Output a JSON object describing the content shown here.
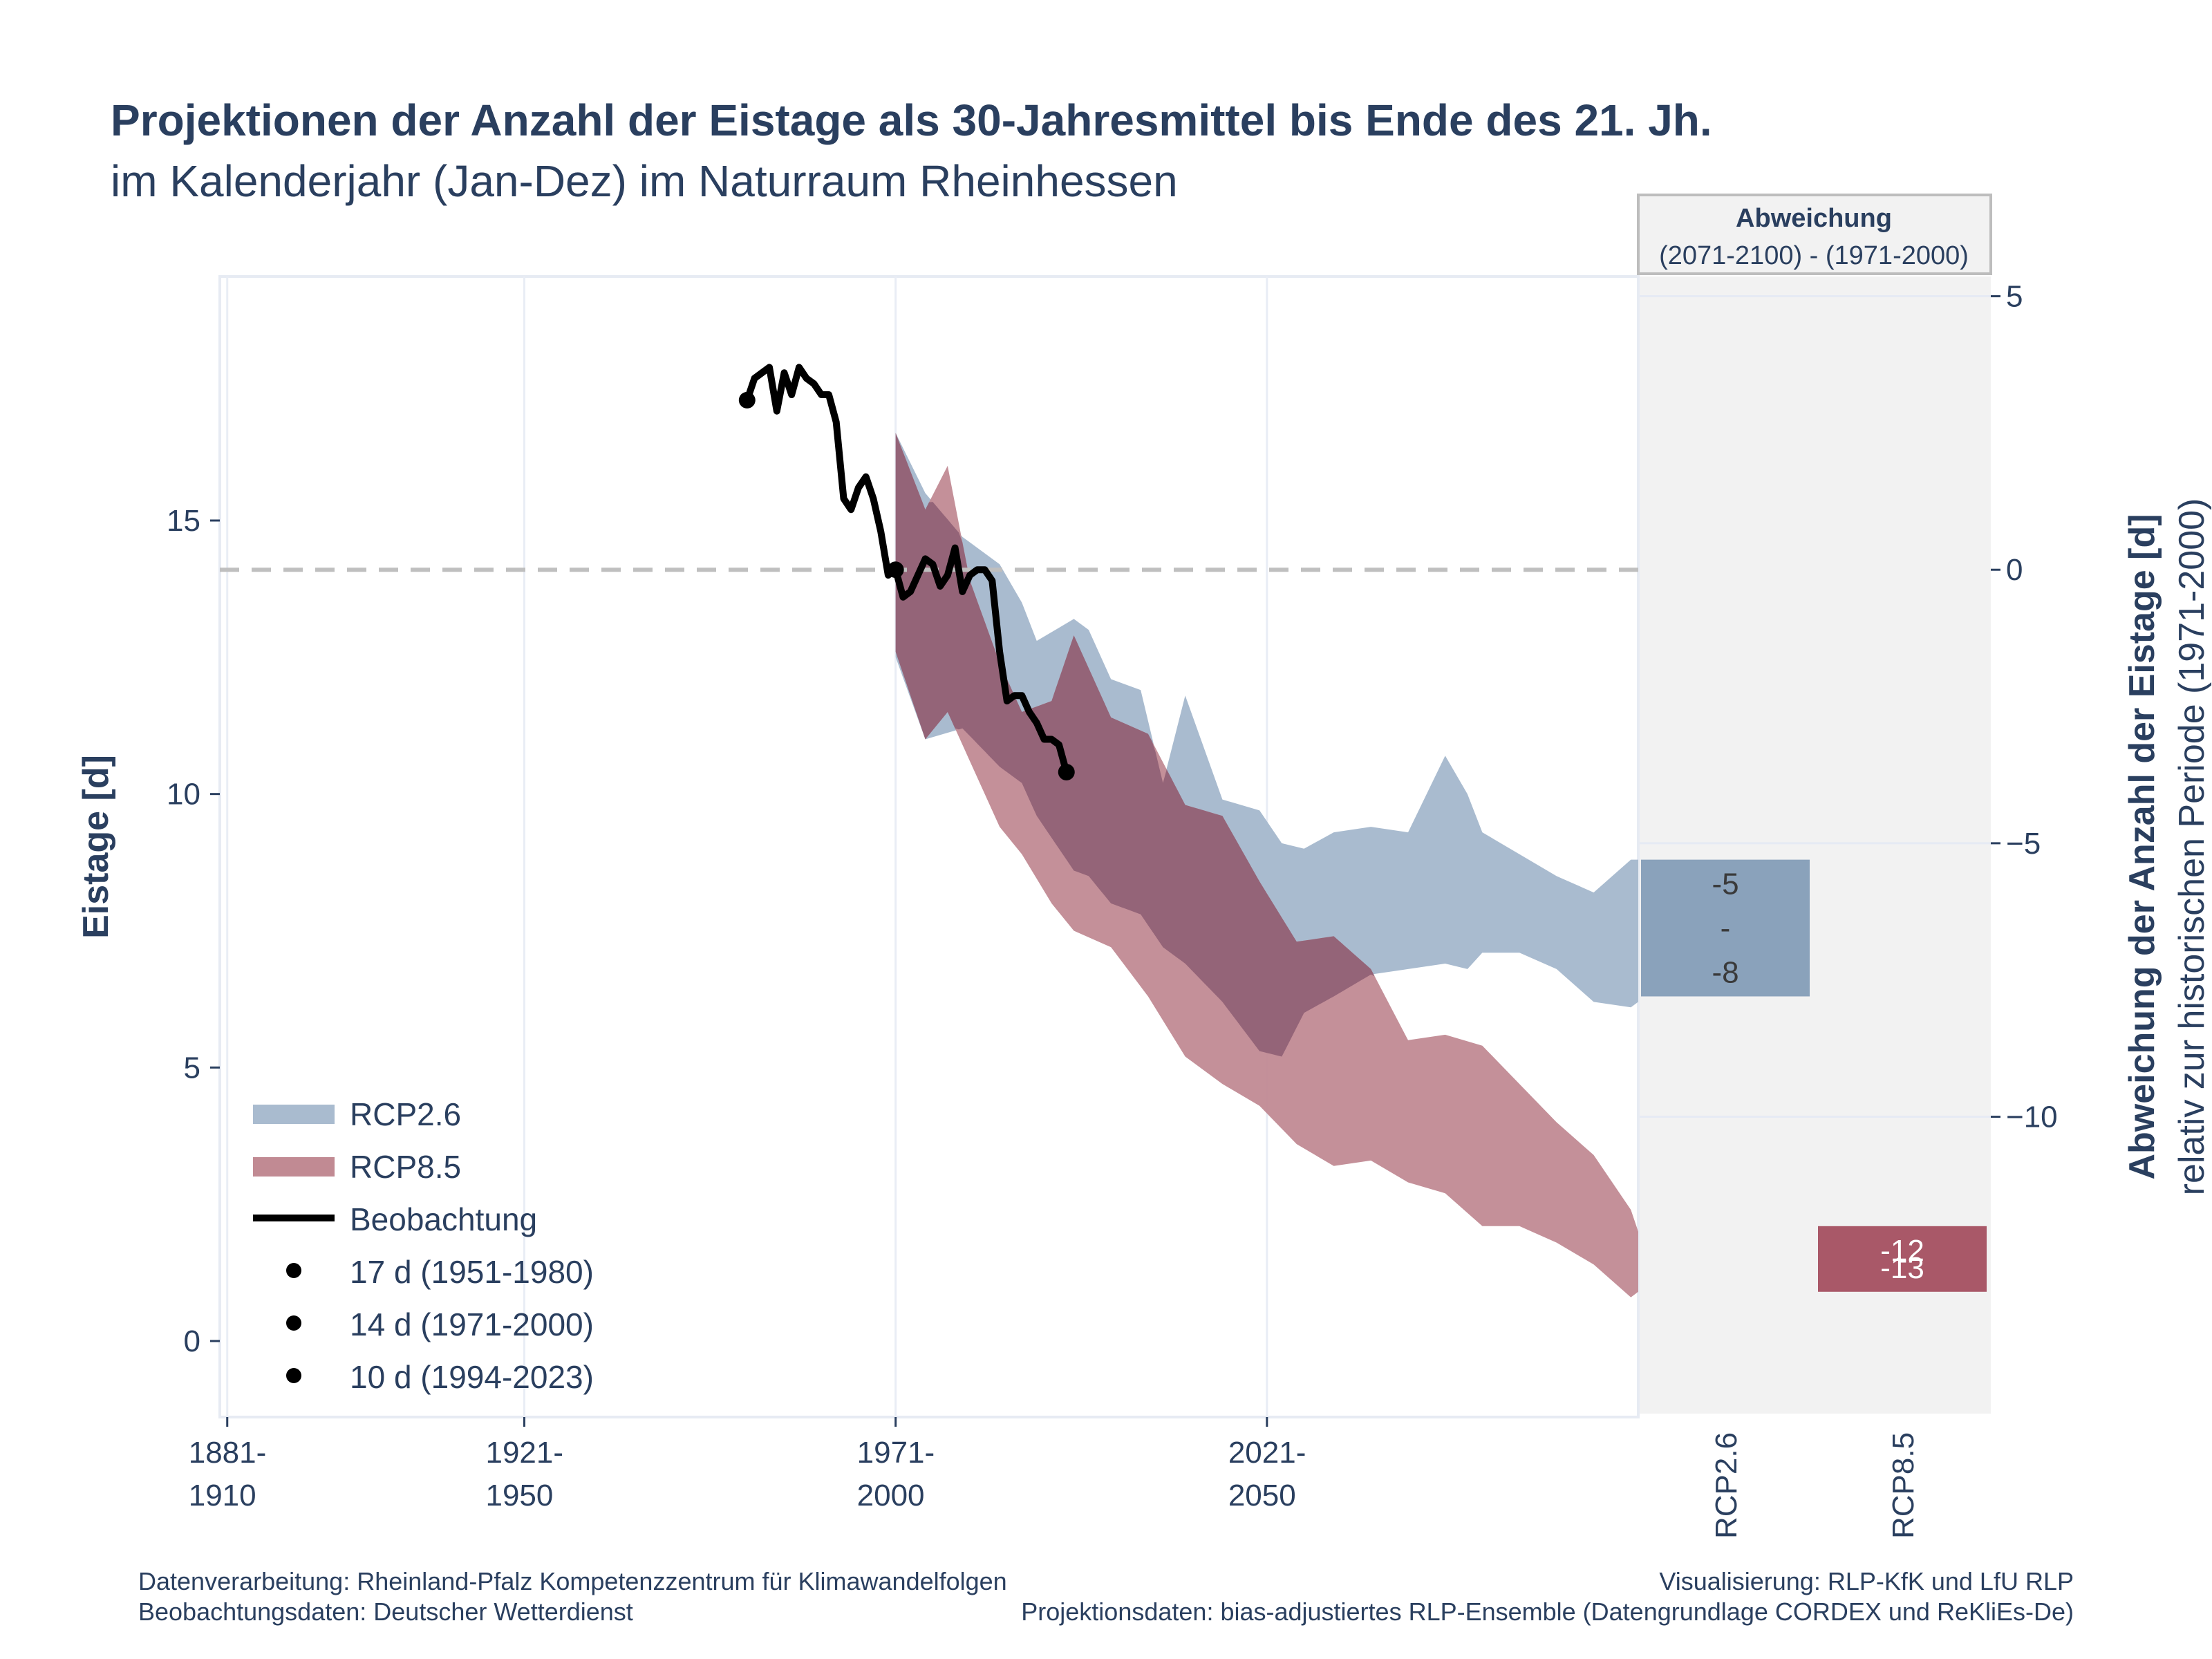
{
  "header": {
    "title": "Projektionen der Anzahl der Eistage als 30-Jahresmittel bis Ende des 21. Jh.",
    "subtitle": "im Kalenderjahr (Jan-Dez) im Naturraum Rheinhessen"
  },
  "panel": {
    "head_line1": "Abweichung",
    "head_line2": "(2071-2100) - (1971-2000)",
    "categories": [
      "RCP2.6",
      "RCP8.5"
    ]
  },
  "footer": {
    "left_line1": "Datenverarbeitung: Rheinland-Pfalz Kompetenzzentrum für Klimawandelfolgen",
    "left_line2": "Beobachtungsdaten:  Deutscher Wetterdienst",
    "right_line1": "Visualisierung: RLP-KfK und LfU RLP",
    "right_line2": "Projektionsdaten: bias-adjustiertes RLP-Ensemble (Datengrundlage CORDEX und ReKliEs-De)"
  },
  "legend": {
    "items": [
      "RCP2.6",
      "RCP8.5",
      "Beobachtung",
      "17 d (1951-1980)",
      "14 d (1971-2000)",
      "10 d (1994-2023)"
    ]
  },
  "colors": {
    "rcp26": "#a9bbcf",
    "rcp85": "#c18a93",
    "overlap": "#8c5d72",
    "obs": "#000000",
    "bar_rcp26": "#8aa2bb",
    "bar_rcp85": "#a95868",
    "reference_line": "#bfbfbf",
    "panel_bg": "#f2f2f2"
  },
  "chart_data": {
    "type": "area",
    "title": "Projektionen der Anzahl der Eistage als 30-Jahresmittel bis Ende des 21. Jh.",
    "subtitle": "im Kalenderjahr (Jan-Dez) im Naturraum Rheinhessen",
    "ylabel": "Eistage [d]",
    "y2label": "Abweichung der Anzahl der Eistage [d]",
    "y2label_sub": "relativ zur historischen Periode (1971-2000)",
    "x_unit": "start year of 30-year period",
    "x_ticks": [
      {
        "x": 1881,
        "label1": "1881-",
        "label2": "1910"
      },
      {
        "x": 1921,
        "label1": "1921-",
        "label2": "1950"
      },
      {
        "x": 1971,
        "label1": "1971-",
        "label2": "2000"
      },
      {
        "x": 2021,
        "label1": "2021-",
        "label2": "2050"
      }
    ],
    "y_ticks": [
      0,
      5,
      10,
      15
    ],
    "y2_ticks": [
      5,
      0,
      -5,
      -10
    ],
    "xlim": [
      1880,
      2071
    ],
    "ylim": [
      -0.8,
      19.5
    ],
    "reference_value": 14.1,
    "series": [
      {
        "name": "RCP2.6",
        "kind": "band",
        "x": [
          1971,
          1975,
          1980,
          1985,
          1988,
          1990,
          1995,
          1997,
          2000,
          2004,
          2007,
          2010,
          2015,
          2020,
          2023,
          2026,
          2030,
          2035,
          2040,
          2045,
          2048,
          2050,
          2055,
          2060,
          2065,
          2070,
          2071
        ],
        "upper": [
          16.6,
          15.5,
          14.7,
          14.2,
          13.5,
          12.8,
          13.2,
          13.0,
          12.1,
          11.9,
          10.2,
          11.8,
          9.9,
          9.7,
          9.1,
          9.0,
          9.3,
          9.4,
          9.3,
          10.7,
          10.0,
          9.3,
          8.9,
          8.5,
          8.2,
          8.8,
          8.8
        ],
        "lower": [
          12.5,
          11.0,
          11.2,
          10.5,
          10.2,
          9.6,
          8.6,
          8.5,
          8.0,
          7.8,
          7.2,
          6.9,
          6.2,
          5.3,
          5.2,
          6.0,
          6.3,
          6.7,
          6.8,
          6.9,
          6.8,
          7.1,
          7.1,
          6.8,
          6.2,
          6.1,
          6.2
        ]
      },
      {
        "name": "RCP8.5",
        "kind": "band",
        "x": [
          1971,
          1975,
          1978,
          1981,
          1985,
          1988,
          1992,
          1995,
          2000,
          2005,
          2010,
          2015,
          2020,
          2025,
          2030,
          2035,
          2040,
          2045,
          2050,
          2055,
          2060,
          2065,
          2070,
          2071
        ],
        "upper": [
          16.6,
          15.2,
          16.0,
          13.9,
          12.4,
          11.5,
          11.7,
          12.9,
          11.4,
          11.1,
          9.8,
          9.6,
          8.4,
          7.3,
          7.4,
          6.8,
          5.5,
          5.6,
          5.4,
          4.7,
          4.0,
          3.4,
          2.4,
          2.0
        ],
        "lower": [
          12.6,
          11.0,
          11.5,
          10.6,
          9.4,
          8.9,
          8.0,
          7.5,
          7.2,
          6.3,
          5.2,
          4.7,
          4.3,
          3.6,
          3.2,
          3.3,
          2.9,
          2.7,
          2.1,
          2.1,
          1.8,
          1.4,
          0.8,
          0.9
        ]
      },
      {
        "name": "Beobachtung",
        "kind": "line",
        "x": [
          1951,
          1952,
          1953,
          1954,
          1955,
          1956,
          1957,
          1958,
          1959,
          1960,
          1961,
          1962,
          1963,
          1964,
          1965,
          1966,
          1967,
          1968,
          1969,
          1970,
          1971,
          1972,
          1973,
          1974,
          1975,
          1976,
          1977,
          1978,
          1979,
          1980,
          1981,
          1982,
          1983,
          1984,
          1985,
          1986,
          1987,
          1988,
          1989,
          1990,
          1991,
          1992,
          1993,
          1994
        ],
        "y": [
          17.2,
          17.6,
          17.7,
          17.8,
          17.0,
          17.7,
          17.3,
          17.8,
          17.6,
          17.5,
          17.3,
          17.3,
          16.8,
          15.4,
          15.2,
          15.6,
          15.8,
          15.4,
          14.8,
          14.0,
          14.1,
          13.6,
          13.7,
          14.0,
          14.3,
          14.2,
          13.8,
          14.0,
          14.5,
          13.7,
          14.0,
          14.1,
          14.1,
          13.9,
          12.6,
          11.7,
          11.8,
          11.8,
          11.5,
          11.3,
          11.0,
          11.0,
          10.9,
          10.4
        ]
      },
      {
        "name": "Beobachtung Punkte",
        "kind": "markers",
        "points": [
          {
            "x": 1951,
            "y": 17.2,
            "label": "17 d (1951-1980)"
          },
          {
            "x": 1971,
            "y": 14.1,
            "label": "14 d (1971-2000)"
          },
          {
            "x": 1994,
            "y": 10.4,
            "label": "10 d (1994-2023)"
          }
        ]
      }
    ],
    "deviation_panel": {
      "title": "Abweichung",
      "subtitle": "(2071-2100) - (1971-2000)",
      "categories": [
        "RCP2.6",
        "RCP8.5"
      ],
      "bars": [
        {
          "name": "RCP2.6",
          "from": -5.3,
          "to": -7.8,
          "label_top": "-5",
          "label_mid": "-",
          "label_bottom": "-8"
        },
        {
          "name": "RCP8.5",
          "from": -12.0,
          "to": -13.2,
          "label_top": "-12",
          "label_mid": "-",
          "label_bottom": "-13"
        }
      ]
    }
  }
}
